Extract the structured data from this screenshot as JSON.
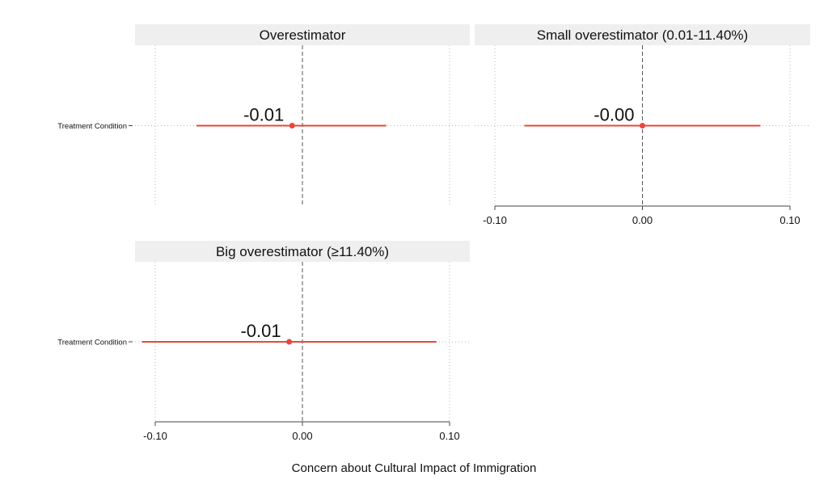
{
  "chart_data": {
    "type": "forest",
    "xlabel": "Concern about Cultural Impact of Immigration",
    "xlim": [
      -0.1,
      0.1
    ],
    "xticks": [
      -0.1,
      0.0,
      0.1
    ],
    "xtick_labels": [
      "-0.10",
      "0.00",
      "0.10"
    ],
    "panels": [
      {
        "title": "Overestimator",
        "row_label": "Treatment Condition",
        "estimate": -0.007,
        "ci_low": -0.072,
        "ci_high": 0.057,
        "estimate_label": "-0.01",
        "show_x_axis": false
      },
      {
        "title": "Small overestimator (0.01-11.40%)",
        "row_label": "",
        "estimate": 0.0,
        "ci_low": -0.08,
        "ci_high": 0.08,
        "estimate_label": "-0.00",
        "show_x_axis": true
      },
      {
        "title": "Big overestimator (≥11.40%)",
        "row_label": "Treatment Condition",
        "estimate": -0.009,
        "ci_low": -0.109,
        "ci_high": 0.091,
        "estimate_label": "-0.01",
        "show_x_axis": true
      }
    ],
    "colors": {
      "estimate": "#e8473a",
      "strip_bg": "#efefef",
      "zero_line": "#555555",
      "grid": "#bbbbbb",
      "axis": "#444444",
      "text": "#111111"
    },
    "grid": true
  }
}
